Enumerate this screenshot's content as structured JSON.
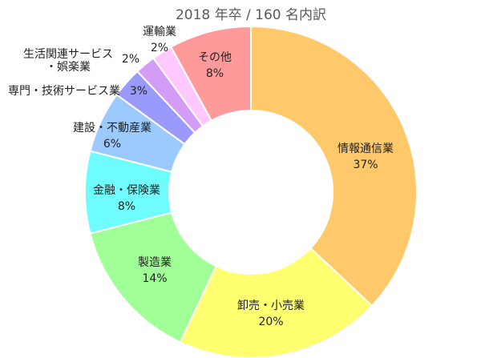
{
  "chart_data": {
    "type": "pie",
    "title": "2018 年卒 / 160 名内訳",
    "slices": [
      {
        "label": "情報通信業",
        "value": 37,
        "value_label": "37%",
        "color": "#ffc96b"
      },
      {
        "label": "卸売・小売業",
        "value": 20,
        "value_label": "20%",
        "color": "#ffff70"
      },
      {
        "label": "製造業",
        "value": 14,
        "value_label": "14%",
        "color": "#a0ff96"
      },
      {
        "label": "金融・保険業",
        "value": 8,
        "value_label": "8%",
        "color": "#6ffcfc"
      },
      {
        "label": "建設・不動産業",
        "value": 6,
        "value_label": "6%",
        "color": "#9ccaff"
      },
      {
        "label": "専門・技術サービス業",
        "value": 3,
        "value_label": "3%",
        "color": "#9a9afc"
      },
      {
        "label": "生活関連サービス・娯楽業",
        "value": 2,
        "value_label": "2%",
        "color": "#d39cf7"
      },
      {
        "label": "運輸業",
        "value": 2,
        "value_label": "2%",
        "color": "#ffc9ff"
      },
      {
        "label": "その他",
        "value": 8,
        "value_label": "8%",
        "color": "#ff9a9a"
      }
    ]
  }
}
